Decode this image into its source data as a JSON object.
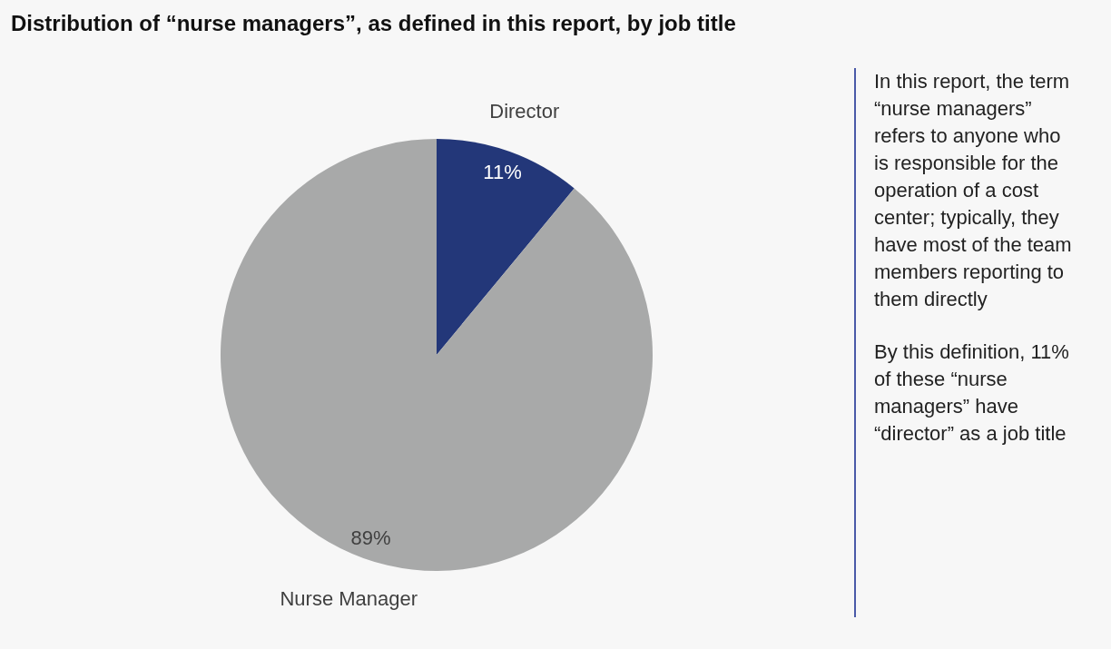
{
  "chart_data": {
    "type": "pie",
    "title": "Distribution of “nurse managers”, as defined in this report, by job title",
    "categories": [
      "Director",
      "Nurse Manager"
    ],
    "values": [
      11,
      89
    ],
    "colors": [
      "#233779",
      "#a8a9a9"
    ],
    "value_labels": [
      "11%",
      "89%"
    ],
    "annotations": [
      "In this report, the term “nurse managers” refers to anyone who is responsible for the operation of a cost center; typically, they have most of the team members reporting to them directly",
      "By this definition, 11% of these “nurse managers” have “director” as a job title"
    ]
  }
}
